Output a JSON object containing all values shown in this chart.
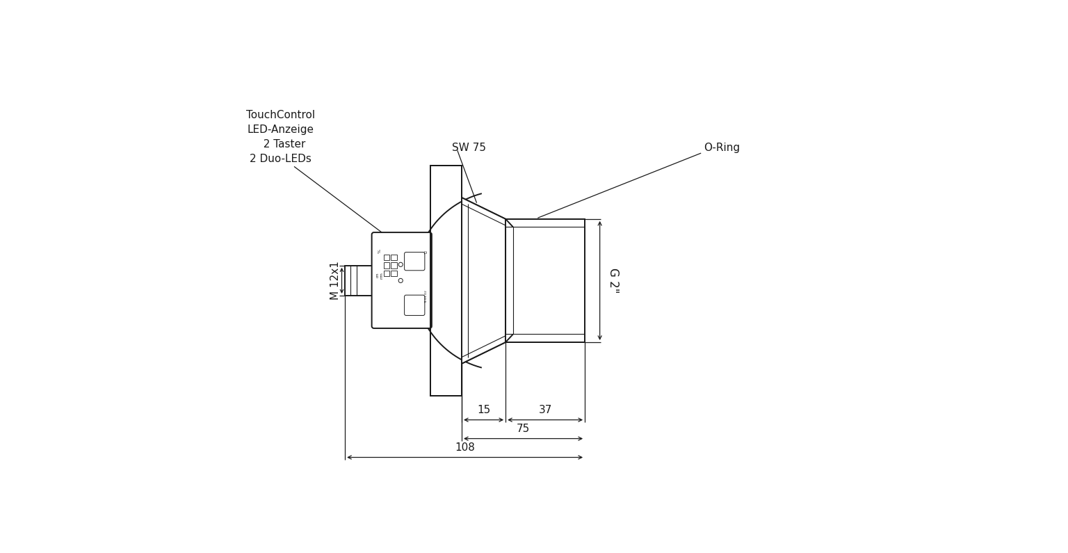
{
  "bg_color": "#ffffff",
  "line_color": "#1a1a1a",
  "lw": 1.4,
  "tlw": 0.8,
  "dlw": 0.9,
  "fs": 11,
  "labels": {
    "touch_control": "TouchControl\nLED-Anzeige\n  2 Taster\n2 Duo-LEDs",
    "sw75": "SW 75",
    "oring": "O-Ring",
    "m12x1": "M 12x1",
    "g2": "G 2\"",
    "d15": "15",
    "d37": "37",
    "d75": "75",
    "d108": "108"
  }
}
